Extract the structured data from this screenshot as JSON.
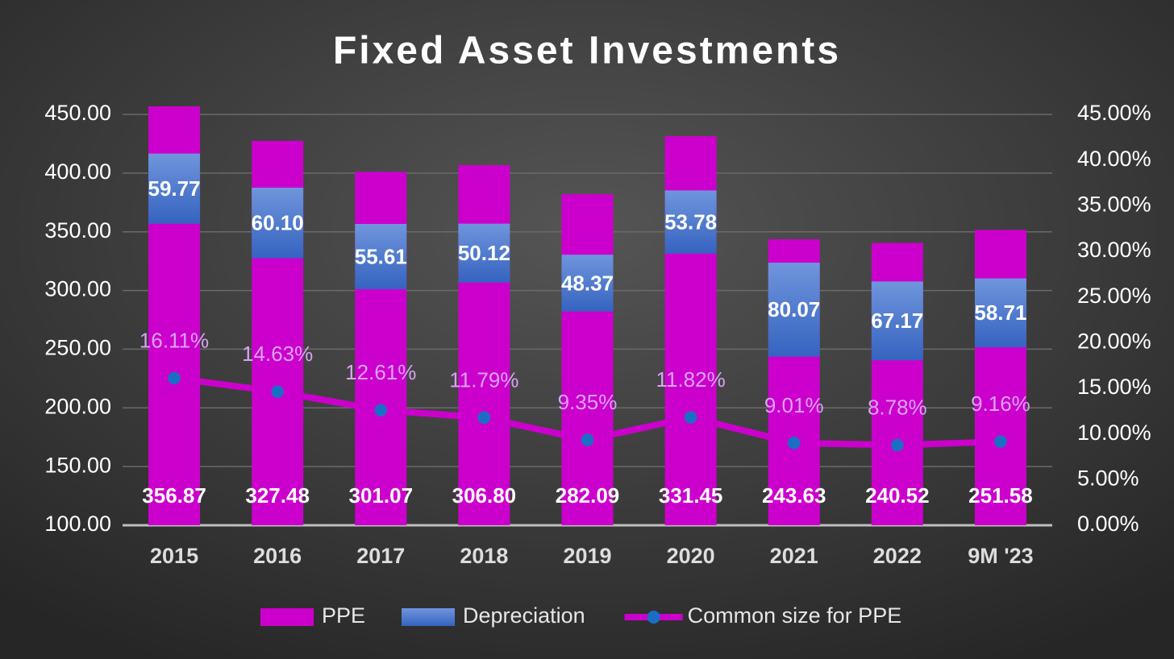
{
  "chart_data": {
    "type": "bar",
    "title": "Fixed Asset Investments",
    "categories": [
      "2015",
      "2016",
      "2017",
      "2018",
      "2019",
      "2020",
      "2021",
      "2022",
      "9M '23"
    ],
    "series": [
      {
        "name": "PPE",
        "color": "#cc00cc",
        "stack": true,
        "values": [
          356.87,
          327.48,
          301.07,
          306.8,
          282.09,
          331.45,
          243.63,
          240.52,
          251.58
        ],
        "value_labels": [
          "356.87",
          "327.48",
          "301.07",
          "306.80",
          "282.09",
          "331.45",
          "243.63",
          "240.52",
          "251.58"
        ]
      },
      {
        "name": "Depreciation",
        "color": "#4a78d0",
        "stack": true,
        "values": [
          59.77,
          60.1,
          55.61,
          50.12,
          48.37,
          53.78,
          80.07,
          67.17,
          58.71
        ],
        "value_labels": [
          "59.77",
          "60.10",
          "55.61",
          "50.12",
          "48.37",
          "53.78",
          "80.07",
          "67.17",
          "58.71"
        ]
      },
      {
        "name": "Common size for PPE",
        "color": "#cc00cc",
        "marker_color": "#1a6fc4",
        "type": "line",
        "axis": "y2",
        "values": [
          16.11,
          14.63,
          12.61,
          11.79,
          9.35,
          11.82,
          9.01,
          8.78,
          9.16
        ],
        "value_labels": [
          "16.11%",
          "14.63%",
          "12.61%",
          "11.79%",
          "9.35%",
          "11.82%",
          "9.01%",
          "8.78%",
          "9.16%"
        ]
      }
    ],
    "ylim": [
      100,
      450
    ],
    "yticks": [
      {
        "value": 100,
        "label": "100.00"
      },
      {
        "value": 150,
        "label": "150.00"
      },
      {
        "value": 200,
        "label": "200.00"
      },
      {
        "value": 250,
        "label": "250.00"
      },
      {
        "value": 300,
        "label": "300.00"
      },
      {
        "value": 350,
        "label": "350.00"
      },
      {
        "value": 400,
        "label": "400.00"
      },
      {
        "value": 450,
        "label": "450.00"
      }
    ],
    "y2lim": [
      0,
      45
    ],
    "y2ticks": [
      {
        "value": 0,
        "label": "0.00%"
      },
      {
        "value": 5,
        "label": "5.00%"
      },
      {
        "value": 10,
        "label": "10.00%"
      },
      {
        "value": 15,
        "label": "15.00%"
      },
      {
        "value": 20,
        "label": "20.00%"
      },
      {
        "value": 25,
        "label": "25.00%"
      },
      {
        "value": 30,
        "label": "30.00%"
      },
      {
        "value": 35,
        "label": "35.00%"
      },
      {
        "value": 40,
        "label": "40.00%"
      },
      {
        "value": 45,
        "label": "45.00%"
      }
    ],
    "grid": true,
    "legend": "bottom"
  }
}
